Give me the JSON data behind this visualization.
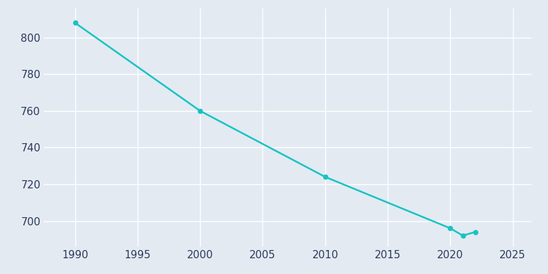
{
  "years": [
    1990,
    2000,
    2010,
    2020,
    2021,
    2022
  ],
  "population": [
    808,
    760,
    724,
    696,
    692,
    694
  ],
  "line_color": "#17C3C3",
  "marker_color": "#17C3C3",
  "background_color": "#E3EAF2",
  "plot_background": "#E3EAF2",
  "grid_color": "#FFFFFF",
  "xlabel": "",
  "ylabel": "",
  "xlim": [
    1987.5,
    2026.5
  ],
  "ylim": [
    686,
    816
  ],
  "yticks": [
    700,
    720,
    740,
    760,
    780,
    800
  ],
  "xticks": [
    1990,
    1995,
    2000,
    2005,
    2010,
    2015,
    2020,
    2025
  ],
  "tick_color": "#2D3A5A",
  "line_width": 1.8,
  "marker_size": 4.5,
  "tick_fontsize": 11
}
